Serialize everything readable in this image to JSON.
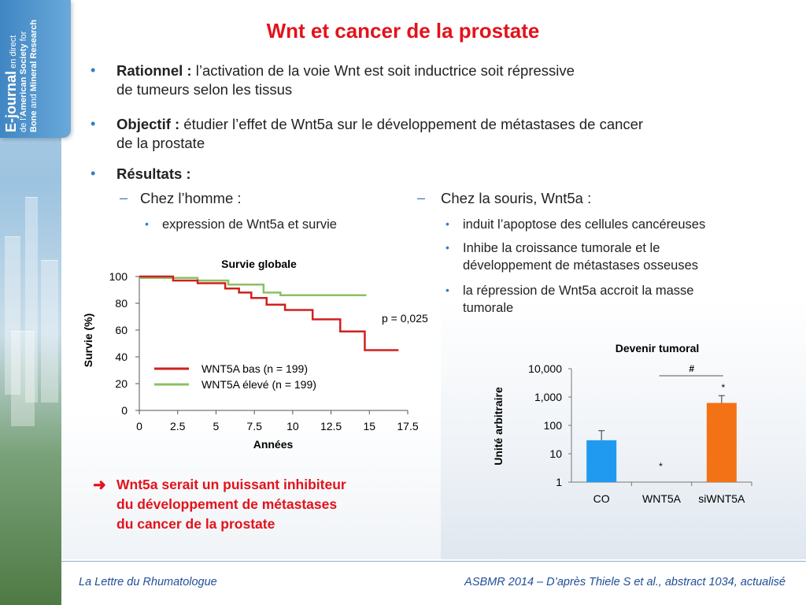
{
  "sidebar": {
    "line1_big": "E-journal",
    "line1_rest": " en direct",
    "line2_pre": "de l’",
    "line2_big": "American Society",
    "line2_post": " for",
    "line3_big1": "Bone",
    "line3_mid": " and ",
    "line3_big2": "Mineral Research"
  },
  "title": "Wnt et cancer de la prostate",
  "bullets": {
    "rationnel_label": "Rationnel :",
    "rationnel_text1": " l’activation de la voie Wnt est soit inductrice soit répressive",
    "rationnel_text2": "de tumeurs selon les tissus",
    "objectif_label": "Objectif :",
    "objectif_text1": " étudier l’effet de Wnt5a sur le développement de métastases de cancer",
    "objectif_text2": "de la prostate",
    "resultats_label": "Résultats :",
    "homme_label": "Chez l’homme :",
    "homme_items": [
      "expression de Wnt5a et survie"
    ],
    "souris_label": "Chez la souris, Wnt5a :",
    "souris_items": [
      [
        "induit l’apoptose des cellules cancéreuses"
      ],
      [
        "Inhibe la croissance tumorale et le",
        "développement de métastases osseuses"
      ],
      [
        "la répression de Wnt5a accroit la masse",
        "tumorale"
      ]
    ]
  },
  "conclusion": {
    "arrow": "➜",
    "lines": [
      "Wnt5a serait un puissant inhibiteur",
      "du développement de métastases",
      "du cancer de la prostate"
    ]
  },
  "footer": {
    "left": "La Lettre du Rhumatologue",
    "right": "ASBMR 2014 – D’après Thiele S et al., abstract 1034, actualisé"
  },
  "colors": {
    "title": "#e3121b",
    "accent": "#2d7fc7",
    "footer": "#1f4e97",
    "red_series": "#d0211e",
    "green_series": "#8cc063"
  },
  "chart_data": [
    {
      "type": "line",
      "title": "Survie globale",
      "xlabel": "Années",
      "ylabel": "Survie (%)",
      "xlim": [
        0,
        17.5
      ],
      "ylim": [
        0,
        100
      ],
      "xticks": [
        0,
        2.5,
        5,
        7.5,
        10,
        12.5,
        15,
        17.5
      ],
      "xtick_labels": [
        "0",
        "2.5",
        "5",
        "7.5",
        "10",
        "12.5",
        "15",
        "17.5"
      ],
      "yticks": [
        0,
        20,
        40,
        60,
        80,
        100
      ],
      "annotation": "p = 0,025",
      "legend_position": "lower-left",
      "series": [
        {
          "name": "WNT5A bas (n = 199)",
          "color": "#d0211e",
          "step": true,
          "x": [
            0,
            2.2,
            3.8,
            5.6,
            6.5,
            7.3,
            8.3,
            9.5,
            11.3,
            13.1,
            14.7,
            16.9
          ],
          "y": [
            100,
            97,
            95,
            91,
            88,
            84,
            79,
            75,
            68,
            59,
            45,
            45
          ]
        },
        {
          "name": "WNT5A élevé (n = 199)",
          "color": "#8cc063",
          "step": true,
          "x": [
            0,
            3.8,
            5.8,
            8.1,
            9.2,
            14.8
          ],
          "y": [
            99,
            97,
            94,
            88,
            86,
            86
          ]
        }
      ]
    },
    {
      "type": "bar",
      "title": "Devenir tumoral",
      "ylabel": "Unité arbitraire",
      "scale": "log",
      "ylim": [
        1,
        10000
      ],
      "ytick_labels": [
        "1",
        "10",
        "100",
        "1,000",
        "10,000"
      ],
      "categories": [
        "CO",
        "WNT5A",
        "siWNT5A"
      ],
      "values": [
        30,
        1,
        620
      ],
      "errors": [
        35,
        0,
        500
      ],
      "colors": [
        "#1f9af0",
        "#999999",
        "#f47216"
      ],
      "markers": {
        "wnt5a": "*",
        "siwnt5a": "*",
        "bracket": "#"
      }
    }
  ]
}
